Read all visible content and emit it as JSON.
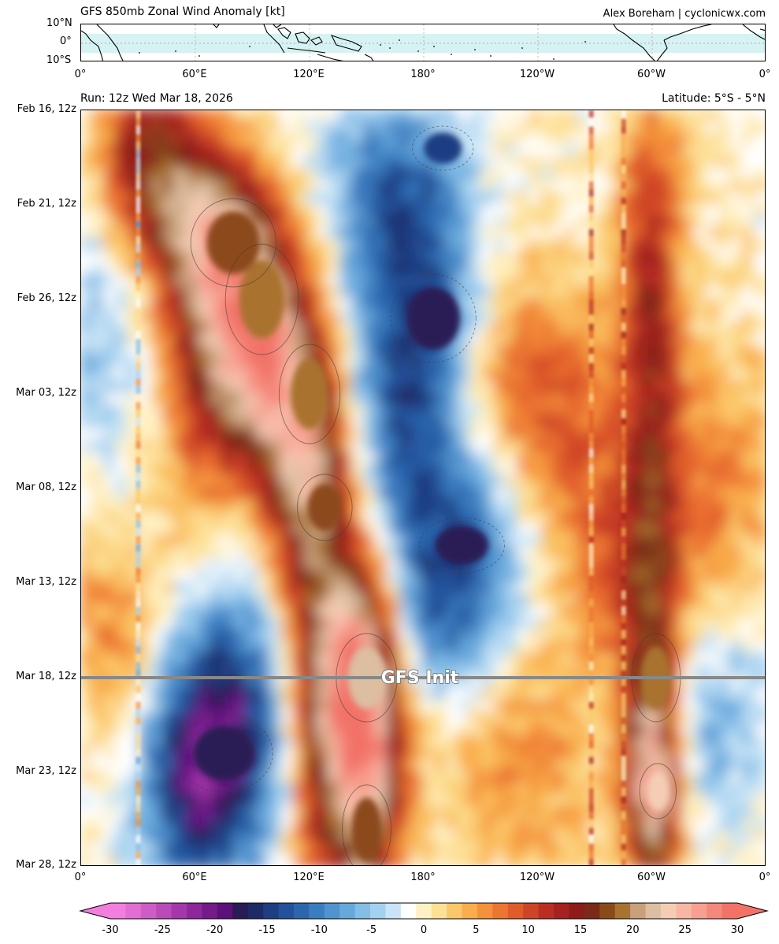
{
  "header": {
    "title": "GFS 850mb Zonal Wind Anomaly [kt]",
    "credit": "Alex Boreham | cyclonicwx.com",
    "run": "Run: 12z Wed Mar 18, 2026",
    "latitude_band": "Latitude: 5°S - 5°N"
  },
  "map": {
    "lat_ticks": [
      "10°N",
      "0°",
      "10°S"
    ],
    "lon_ticks": [
      "0°",
      "60°E",
      "120°E",
      "180°",
      "120°W",
      "60°W",
      "0°"
    ]
  },
  "chart_data": {
    "type": "heatmap",
    "title": "GFS 850mb Zonal Wind Anomaly [kt]",
    "x_ticks": [
      "0°",
      "60°E",
      "120°E",
      "180°",
      "120°W",
      "60°W",
      "0°"
    ],
    "x_range": [
      0,
      360
    ],
    "y_ticks": [
      "Feb 16, 12z",
      "Feb 21, 12z",
      "Feb 26, 12z",
      "Mar 03, 12z",
      "Mar 08, 12z",
      "Mar 13, 12z",
      "Mar 18, 12z",
      "Mar 23, 12z",
      "Mar 28, 12z"
    ],
    "y_range": [
      "Feb 16, 12z",
      "Mar 28, 12z"
    ],
    "annotation": "GFS Init",
    "init_time": "Mar 18, 12z",
    "colorbar": {
      "ticks": [
        -30,
        -25,
        -20,
        -15,
        -10,
        -5,
        0,
        5,
        10,
        15,
        20,
        25,
        30
      ],
      "range": [
        -30,
        30
      ],
      "colors": [
        "#f47edf",
        "#e26ed3",
        "#cf5cc6",
        "#bb4ab9",
        "#a437ab",
        "#8c279c",
        "#741a8b",
        "#5c107a",
        "#2a1a55",
        "#1c2a66",
        "#1e3e83",
        "#23519a",
        "#2c66ae",
        "#3a7dc0",
        "#4f93cf",
        "#67a8dc",
        "#84bde7",
        "#a5d1f0",
        "#c8e4f6",
        "#ffffff",
        "#fff1c4",
        "#fde096",
        "#fbc869",
        "#f9ad4c",
        "#f4913b",
        "#ec7531",
        "#e05c2b",
        "#cf4426",
        "#bb2e23",
        "#a6211f",
        "#8f1a1a",
        "#7a2a16",
        "#8b4a1a",
        "#a9722e",
        "#c8a07c",
        "#ddbea0",
        "#f5cdb5",
        "#f8b7a4",
        "#f7a090",
        "#f5887c",
        "#f27268"
      ],
      "over_color": "#f27268",
      "under_color": "#f47edf"
    },
    "features": [
      {
        "name": "Westerly band, Indian Ocean to western Pacific, drifting east",
        "lon_start": 60,
        "lon_end": 140,
        "time": "Feb 16 - Mar 05",
        "anomaly_kt": 15
      },
      {
        "name": "Easterly band, central Pacific",
        "lon_start": 140,
        "lon_end": 200,
        "time": "Feb 16 - Mar 08",
        "anomaly_kt": -12
      },
      {
        "name": "Westerly burst near 150°E at init",
        "lon": 150,
        "time": "Mar 18",
        "anomaly_kt": 22
      },
      {
        "name": "Persistent westerly anomaly near 60°W",
        "lon": 300,
        "time": "all",
        "anomaly_kt": 15
      },
      {
        "name": "Easterly anomaly over Indian Ocean after init",
        "lon": 75,
        "time": "Mar 19 - Mar 25",
        "anomaly_kt": -15
      }
    ]
  }
}
